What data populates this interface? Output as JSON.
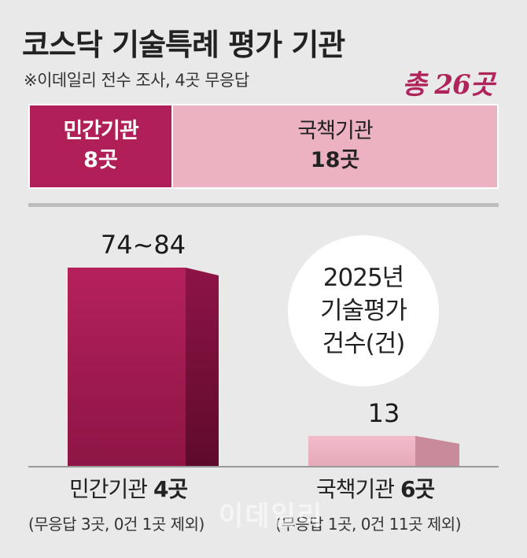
{
  "header": {
    "title": "코스닥 기술특례 평가 기관",
    "subtitle": "※이데일리 전수 조사, 4곳 무응답",
    "total": "총 26곳"
  },
  "split": {
    "private": {
      "name": "민간기관",
      "count": "8곳",
      "value": 8
    },
    "public": {
      "name": "국책기관",
      "count": "18곳",
      "value": 18
    }
  },
  "circle": {
    "line1": "2025년",
    "line2": "기술평가",
    "line3": "건수(건)"
  },
  "watermark": "이데일리",
  "chart_data": {
    "type": "bar",
    "categories": [
      "민간기관",
      "국책기관"
    ],
    "values": [
      84,
      13
    ],
    "value_labels": [
      "74~84",
      "13"
    ],
    "ylim": [
      0,
      84
    ],
    "colors": {
      "private": "#b01f58",
      "public": "#ecb2c1"
    },
    "category_labels": [
      {
        "name": "민간기관",
        "count": "4곳",
        "note": "(무응답 3곳, 0건 1곳 제외)"
      },
      {
        "name": "국책기관",
        "count": "6곳",
        "note": "(무응답 1곳, 0건 11곳 제외)"
      }
    ]
  }
}
